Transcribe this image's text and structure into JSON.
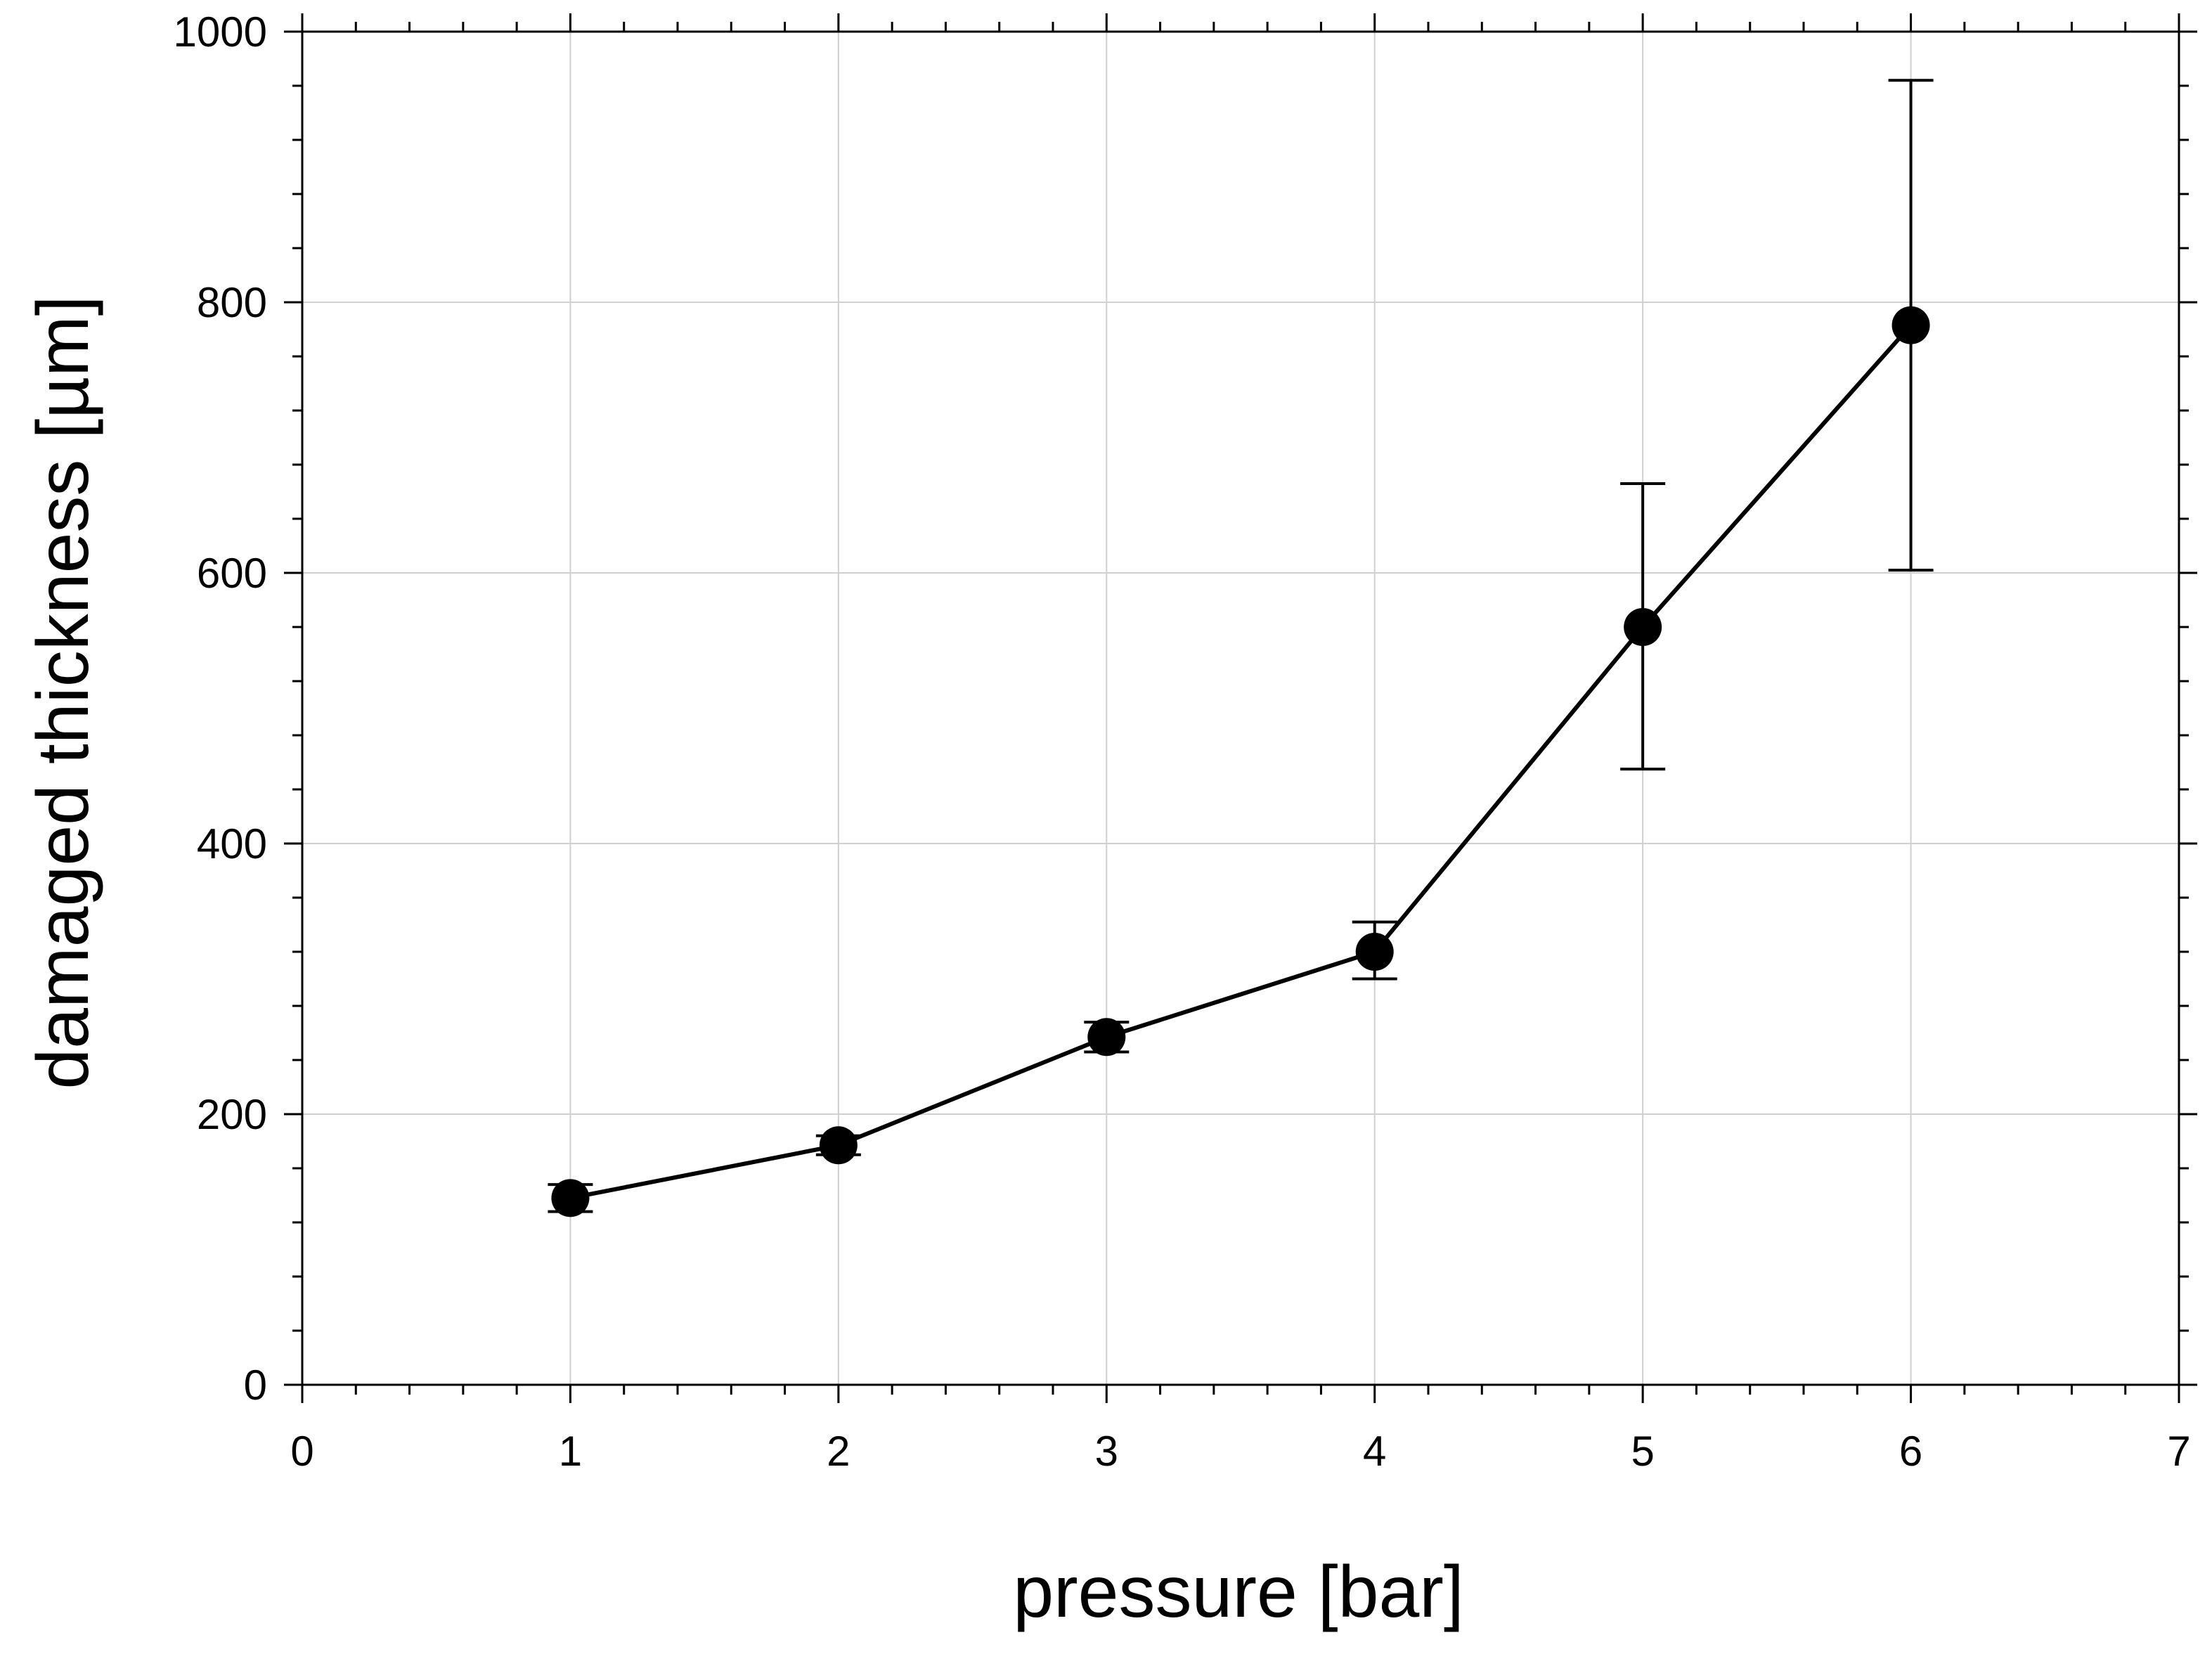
{
  "chart_data": {
    "type": "line",
    "title": "",
    "xlabel": "pressure [bar]",
    "ylabel": "damaged thickness [µm]",
    "xlim": [
      0,
      7
    ],
    "ylim": [
      0,
      1000
    ],
    "x_ticks": [
      "0",
      "1",
      "2",
      "3",
      "4",
      "5",
      "6",
      "7"
    ],
    "y_ticks": [
      "0",
      "200",
      "400",
      "600",
      "800",
      "1000"
    ],
    "grid": true,
    "legend": "none",
    "series": [
      {
        "x": [
          1,
          2,
          3,
          4,
          5,
          6
        ],
        "y": [
          138,
          177,
          257,
          320,
          560,
          783
        ],
        "error": [
          [
            128,
            148
          ],
          [
            170,
            184
          ],
          [
            246,
            268
          ],
          [
            300,
            342
          ],
          [
            455,
            666
          ],
          [
            602,
            964
          ]
        ],
        "marker": "filled-circle",
        "color": "#000000"
      }
    ]
  }
}
